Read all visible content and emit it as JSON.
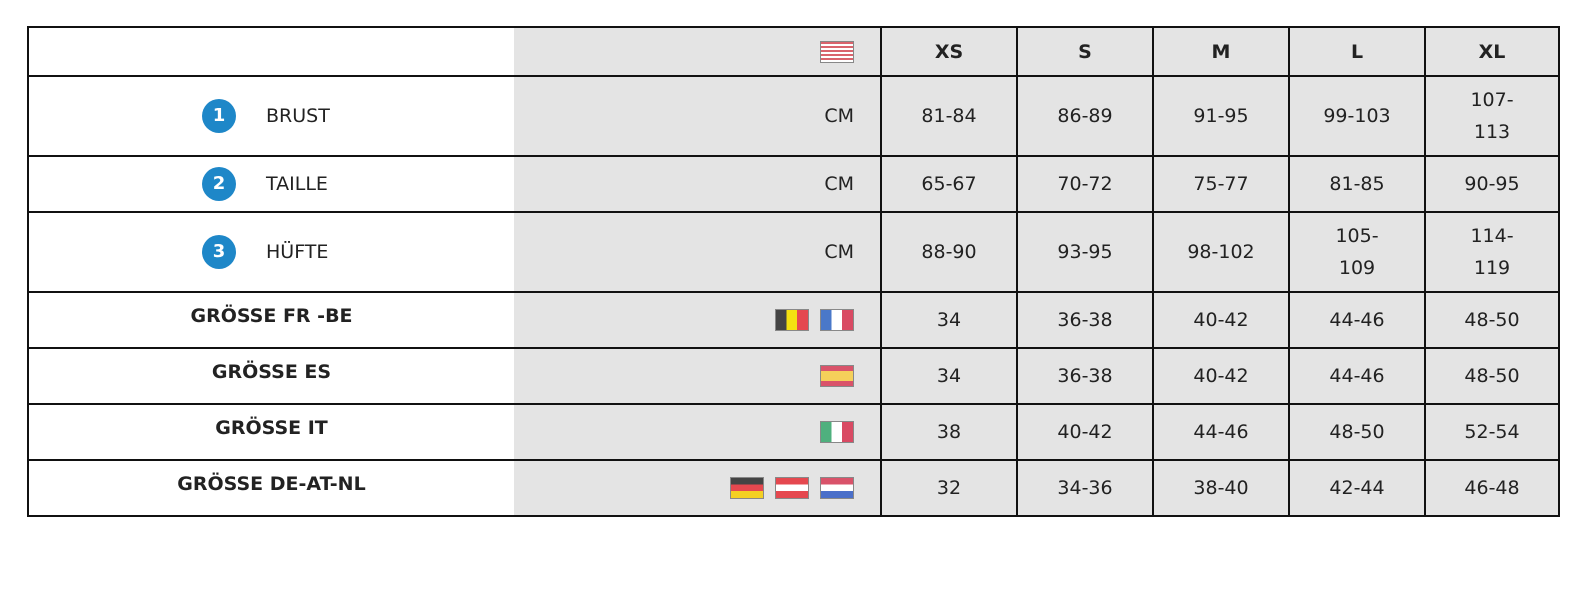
{
  "header": {
    "flag_icon": "us-flag-icon",
    "sizes": [
      "XS",
      "S",
      "M",
      "L",
      "XL"
    ]
  },
  "measurements": [
    {
      "number": "1",
      "label": "BRUST",
      "unit": "CM",
      "values": [
        "81-84",
        "86-89",
        "91-95",
        "99-103",
        "107-113"
      ]
    },
    {
      "number": "2",
      "label": "TAILLE",
      "unit": "CM",
      "values": [
        "65-67",
        "70-72",
        "75-77",
        "81-85",
        "90-95"
      ]
    },
    {
      "number": "3",
      "label": "HÜFTE",
      "unit": "CM",
      "values": [
        "88-90",
        "93-95",
        "98-102",
        "105-109",
        "114-119"
      ]
    }
  ],
  "conversions": [
    {
      "label": "GRÖSSE FR -BE",
      "flags": [
        "belgium-flag-icon",
        "france-flag-icon"
      ],
      "values": [
        "34",
        "36-38",
        "40-42",
        "44-46",
        "48-50"
      ]
    },
    {
      "label": "GRÖSSE ES",
      "flags": [
        "spain-flag-icon"
      ],
      "values": [
        "34",
        "36-38",
        "40-42",
        "44-46",
        "48-50"
      ]
    },
    {
      "label": "GRÖSSE IT",
      "flags": [
        "italy-flag-icon"
      ],
      "values": [
        "38",
        "40-42",
        "44-46",
        "48-50",
        "52-54"
      ]
    },
    {
      "label": "GRÖSSE DE-AT-NL",
      "flags": [
        "germany-flag-icon",
        "austria-flag-icon",
        "netherlands-flag-icon"
      ],
      "values": [
        "32",
        "34-36",
        "38-40",
        "42-44",
        "46-48"
      ]
    }
  ],
  "colors": {
    "badge": "#1e87c8",
    "cell": "#e4e4e4"
  }
}
